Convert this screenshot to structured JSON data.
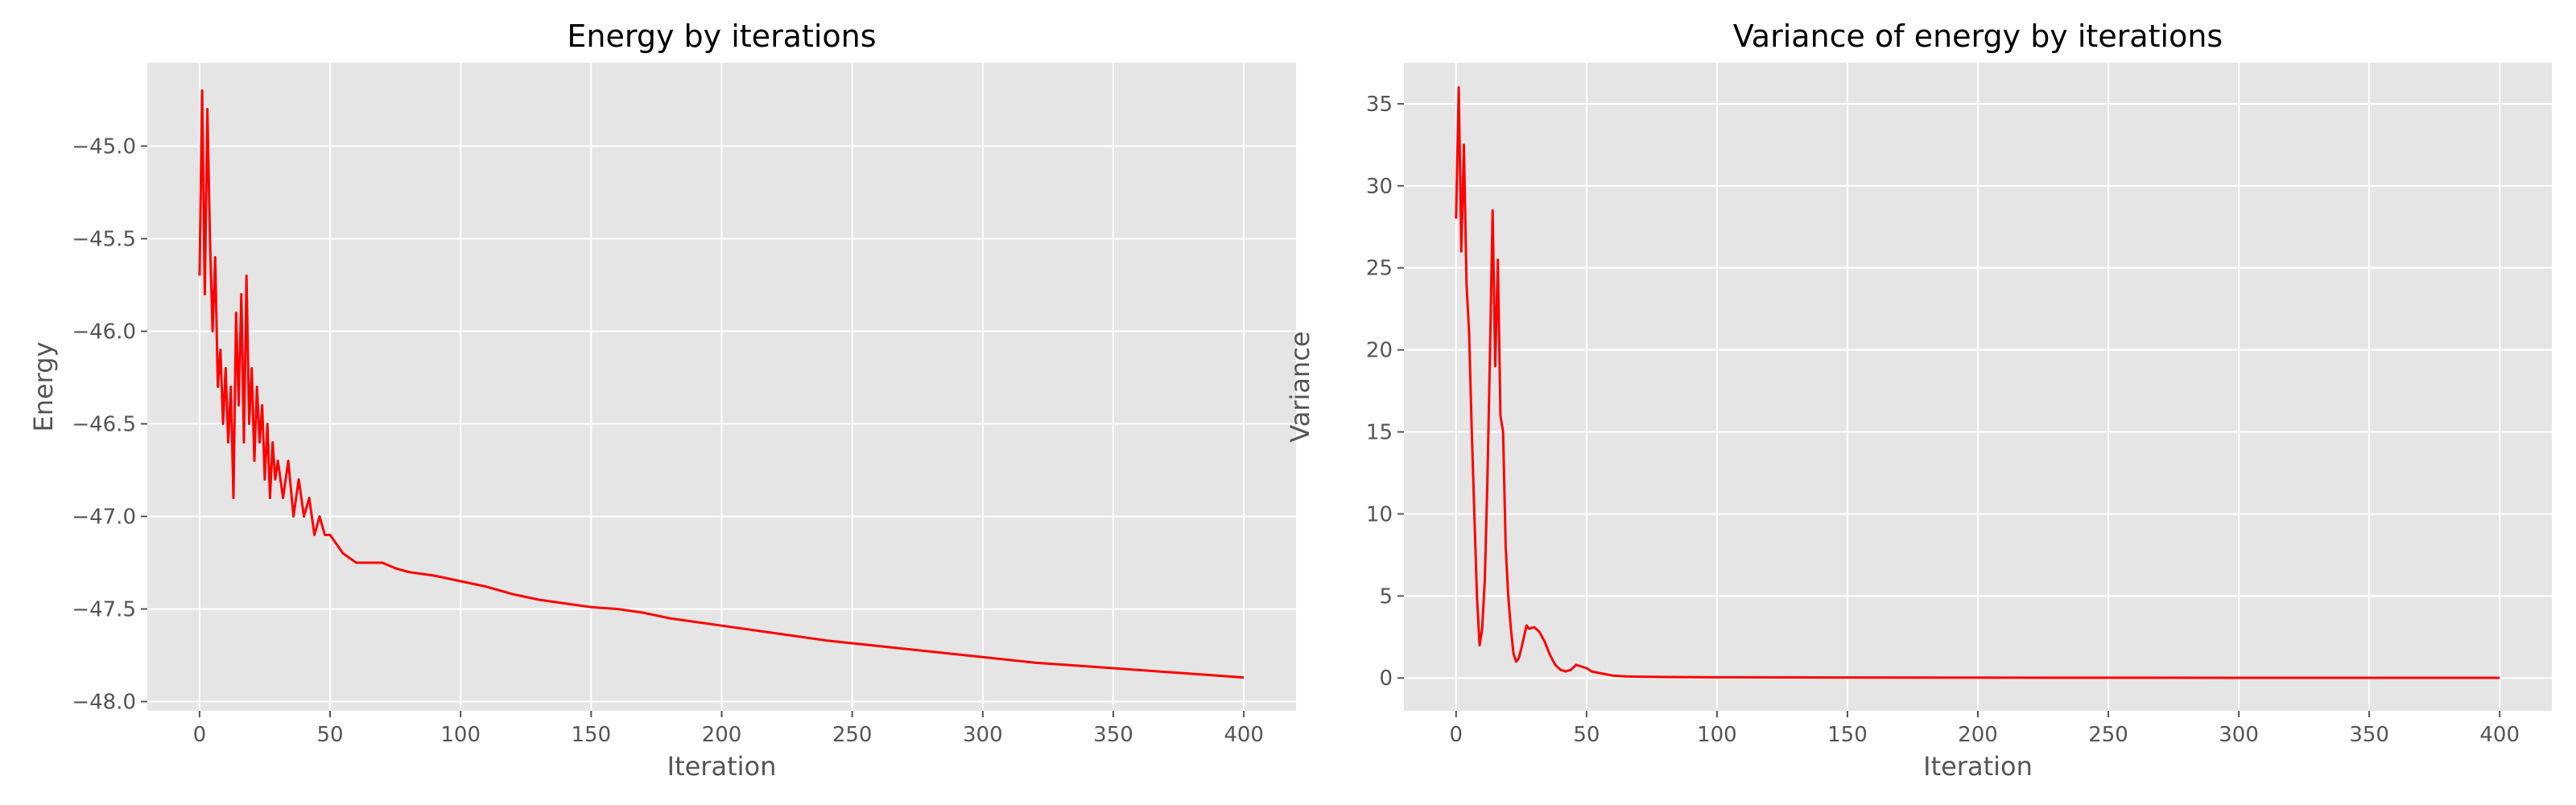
{
  "chart_data": [
    {
      "type": "line",
      "title": "Energy by iterations",
      "xlabel": "Iteration",
      "ylabel": "Energy",
      "xlim": [
        -20,
        420
      ],
      "ylim": [
        -48.05,
        -44.55
      ],
      "xticks": [
        0,
        50,
        100,
        150,
        200,
        250,
        300,
        350,
        400
      ],
      "yticks": [
        -48.0,
        -47.5,
        -47.0,
        -46.5,
        -46.0,
        -45.5,
        -45.0
      ],
      "ytick_labels": [
        "−48.0",
        "−47.5",
        "−47.0",
        "−46.5",
        "−46.0",
        "−45.5",
        "−45.0"
      ],
      "grid": true,
      "series": [
        {
          "color": "#ff0000",
          "x": [
            0,
            1,
            2,
            3,
            4,
            5,
            6,
            7,
            8,
            9,
            10,
            11,
            12,
            13,
            14,
            15,
            16,
            17,
            18,
            19,
            20,
            21,
            22,
            23,
            24,
            25,
            26,
            27,
            28,
            29,
            30,
            32,
            34,
            36,
            38,
            40,
            42,
            44,
            46,
            48,
            50,
            55,
            60,
            65,
            70,
            75,
            80,
            90,
            100,
            110,
            120,
            130,
            140,
            150,
            160,
            170,
            180,
            190,
            200,
            220,
            240,
            260,
            280,
            300,
            320,
            340,
            360,
            380,
            400
          ],
          "y": [
            -45.7,
            -44.7,
            -45.8,
            -44.8,
            -45.5,
            -46.0,
            -45.6,
            -46.3,
            -46.1,
            -46.5,
            -46.2,
            -46.6,
            -46.3,
            -46.9,
            -45.9,
            -46.4,
            -45.8,
            -46.6,
            -45.7,
            -46.5,
            -46.2,
            -46.7,
            -46.3,
            -46.6,
            -46.4,
            -46.8,
            -46.5,
            -46.9,
            -46.6,
            -46.8,
            -46.7,
            -46.9,
            -46.7,
            -47.0,
            -46.8,
            -47.0,
            -46.9,
            -47.1,
            -47.0,
            -47.1,
            -47.1,
            -47.2,
            -47.25,
            -47.25,
            -47.25,
            -47.28,
            -47.3,
            -47.32,
            -47.35,
            -47.38,
            -47.42,
            -47.45,
            -47.47,
            -47.49,
            -47.5,
            -47.52,
            -47.55,
            -47.57,
            -47.59,
            -47.63,
            -47.67,
            -47.7,
            -47.73,
            -47.76,
            -47.79,
            -47.81,
            -47.83,
            -47.85,
            -47.87
          ]
        }
      ]
    },
    {
      "type": "line",
      "title": "Variance of energy by iterations",
      "xlabel": "Iteration",
      "ylabel": "Variance",
      "xlim": [
        -20,
        420
      ],
      "ylim": [
        -2,
        37.5
      ],
      "xticks": [
        0,
        50,
        100,
        150,
        200,
        250,
        300,
        350,
        400
      ],
      "yticks": [
        0,
        5,
        10,
        15,
        20,
        25,
        30,
        35
      ],
      "ytick_labels": [
        "0",
        "5",
        "10",
        "15",
        "20",
        "25",
        "30",
        "35"
      ],
      "grid": true,
      "series": [
        {
          "color": "#ff0000",
          "x": [
            0,
            1,
            2,
            3,
            4,
            5,
            6,
            7,
            8,
            9,
            10,
            11,
            12,
            13,
            14,
            15,
            16,
            17,
            18,
            19,
            20,
            21,
            22,
            23,
            24,
            25,
            26,
            27,
            28,
            30,
            32,
            34,
            36,
            38,
            40,
            42,
            44,
            46,
            48,
            50,
            52,
            55,
            60,
            65,
            70,
            80,
            100,
            150,
            200,
            250,
            300,
            350,
            400
          ],
          "y": [
            28,
            36,
            26,
            32.5,
            24,
            21,
            15,
            10,
            5,
            2,
            3,
            6,
            12,
            20,
            28.5,
            19,
            25.5,
            16,
            15,
            8,
            5,
            3,
            1.5,
            1,
            1.2,
            1.8,
            2.5,
            3.2,
            3.0,
            3.1,
            2.8,
            2.2,
            1.4,
            0.8,
            0.5,
            0.4,
            0.5,
            0.8,
            0.7,
            0.6,
            0.4,
            0.3,
            0.15,
            0.1,
            0.08,
            0.06,
            0.04,
            0.03,
            0.02,
            0.015,
            0.01,
            0.01,
            0.01
          ]
        }
      ]
    }
  ]
}
